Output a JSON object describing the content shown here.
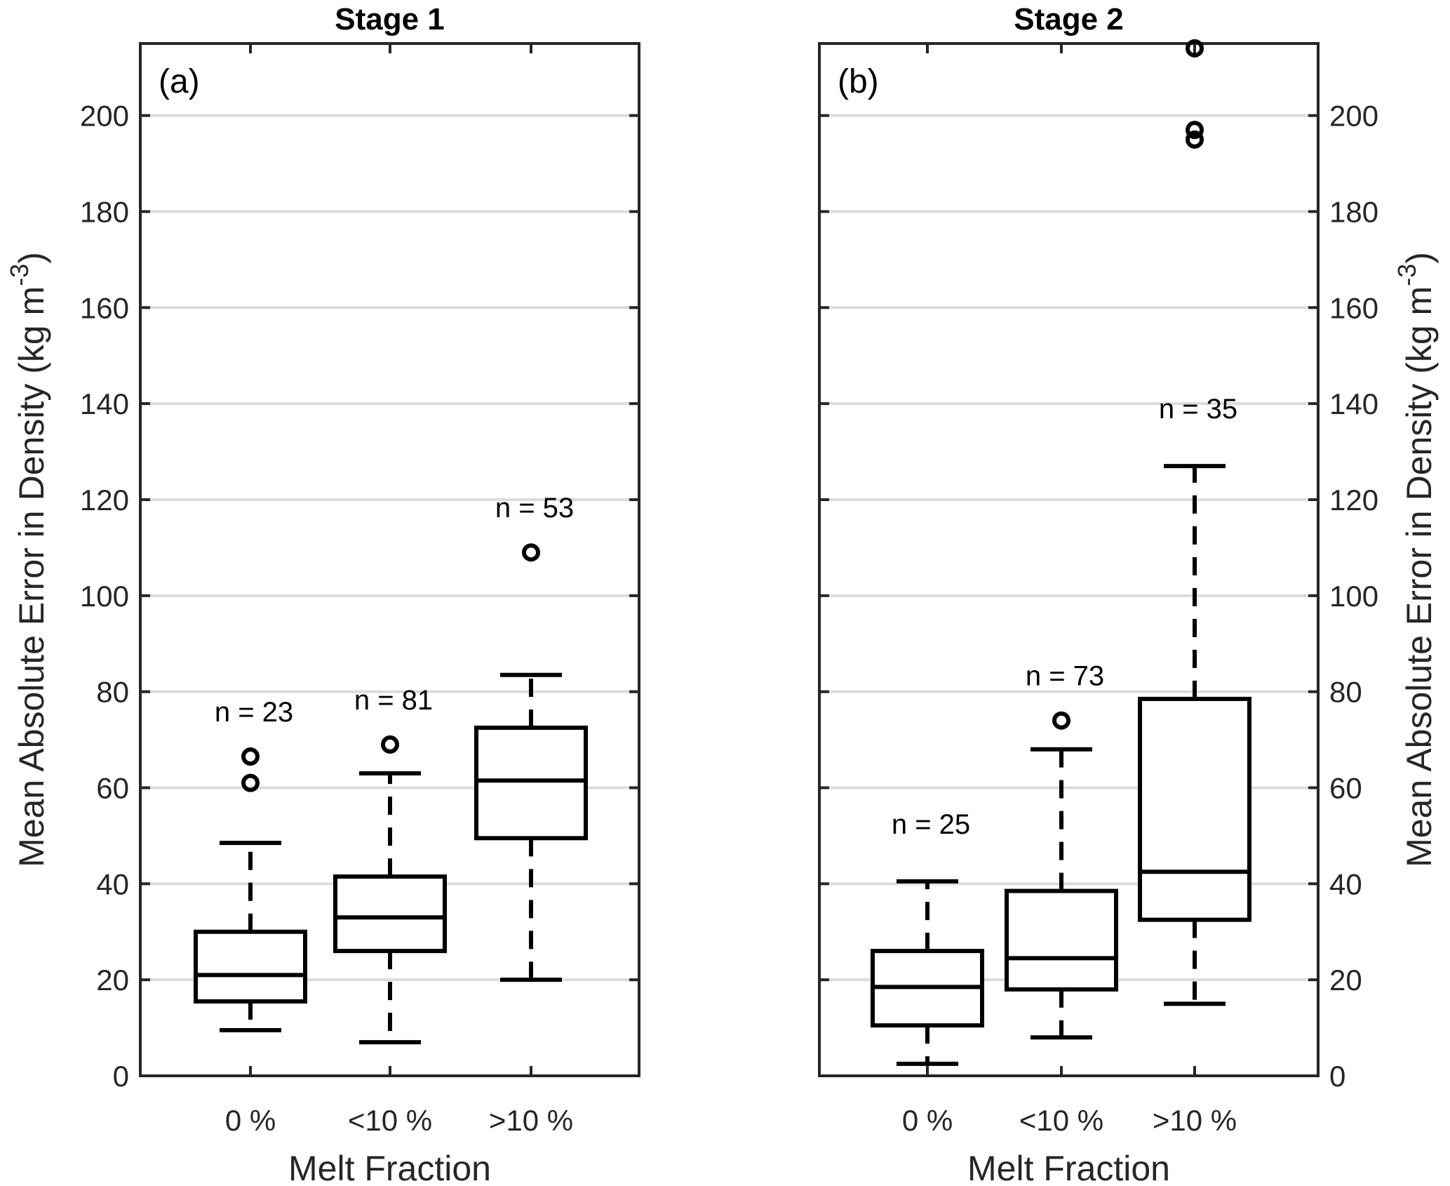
{
  "chart_data": [
    {
      "type": "box",
      "panel_label": "(a)",
      "title": "Stage 1",
      "xlabel": "Melt Fraction",
      "ylabel": "Mean Absolute Error in Density (kg m",
      "ylabel_exponent": "-3",
      "ylabel_close": ")",
      "ylim": [
        0,
        215
      ],
      "yticks": [
        0,
        20,
        40,
        60,
        80,
        100,
        120,
        140,
        160,
        180,
        200
      ],
      "grid": "horizontal",
      "y_axis_side": "left",
      "categories": [
        "0 %",
        "<10 %",
        ">10 %"
      ],
      "boxes": [
        {
          "category": "0 %",
          "whisker_low": 9.5,
          "q1": 15.5,
          "median": 21,
          "q3": 30,
          "whisker_high": 48.5,
          "outliers": [
            61,
            66.5
          ],
          "count_label": "n = 23"
        },
        {
          "category": "<10 %",
          "whisker_low": 7,
          "q1": 26,
          "median": 33,
          "q3": 41.5,
          "whisker_high": 63,
          "outliers": [
            69
          ],
          "count_label": "n = 81"
        },
        {
          "category": ">10 %",
          "whisker_low": 20,
          "q1": 49.5,
          "median": 61.5,
          "q3": 72.5,
          "whisker_high": 83.5,
          "outliers": [
            109
          ],
          "count_label": "n = 53"
        }
      ]
    },
    {
      "type": "box",
      "panel_label": "(b)",
      "title": "Stage 2",
      "xlabel": "Melt Fraction",
      "ylabel": "Mean Absolute Error in Density (kg m",
      "ylabel_exponent": "-3",
      "ylabel_close": ")",
      "ylim": [
        0,
        215
      ],
      "yticks": [
        0,
        20,
        40,
        60,
        80,
        100,
        120,
        140,
        160,
        180,
        200
      ],
      "grid": "horizontal",
      "y_axis_side": "right",
      "categories": [
        "0 %",
        "<10 %",
        ">10 %"
      ],
      "boxes": [
        {
          "category": "0 %",
          "whisker_low": 2.5,
          "q1": 10.5,
          "median": 18.5,
          "q3": 26,
          "whisker_high": 40.5,
          "outliers": [],
          "count_label": "n = 25"
        },
        {
          "category": "<10 %",
          "whisker_low": 8,
          "q1": 18,
          "median": 24.5,
          "q3": 38.5,
          "whisker_high": 68,
          "outliers": [
            74
          ],
          "count_label": "n = 73"
        },
        {
          "category": ">10 %",
          "whisker_low": 15,
          "q1": 32.5,
          "median": 42.5,
          "q3": 78.5,
          "whisker_high": 127,
          "outliers": [
            195,
            197,
            214
          ],
          "count_label": "n = 35"
        }
      ]
    }
  ]
}
